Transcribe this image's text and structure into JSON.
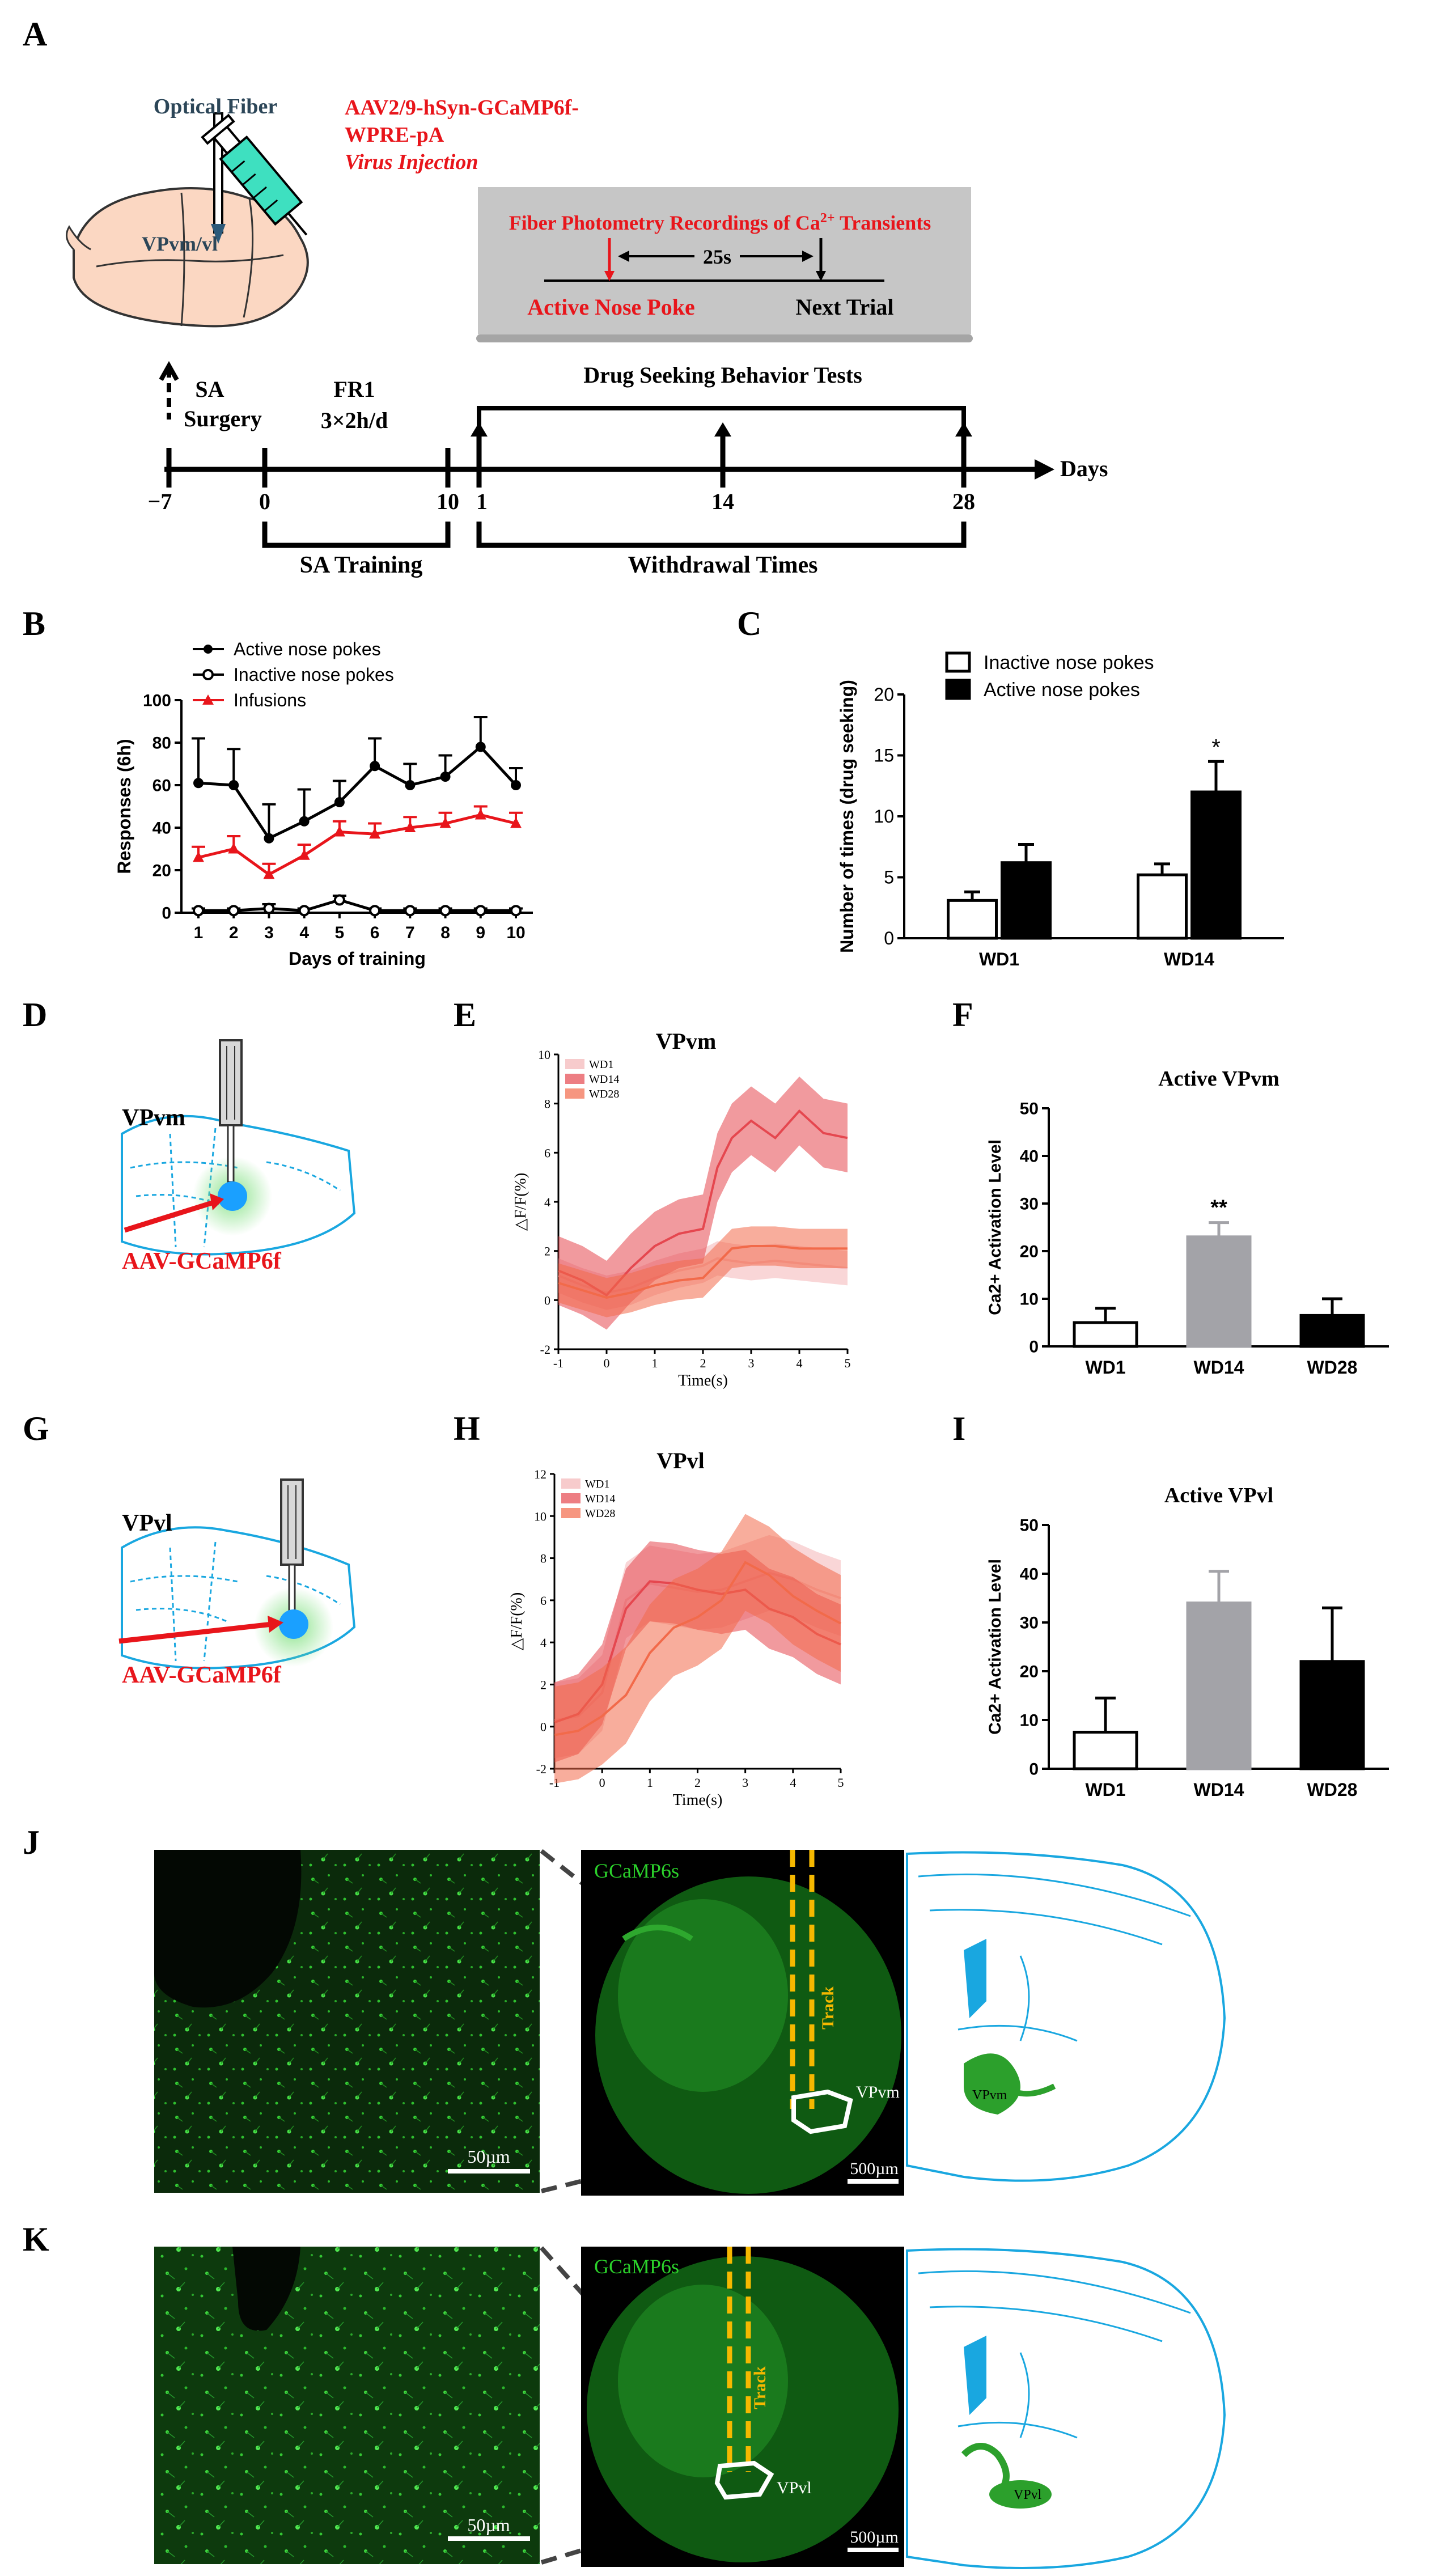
{
  "panel_letters": {
    "A": "A",
    "B": "B",
    "C": "C",
    "D": "D",
    "E": "E",
    "F": "F",
    "G": "G",
    "H": "H",
    "I": "I",
    "J": "J",
    "K": "K"
  },
  "colors": {
    "red": "#e8151b",
    "blue": "#19a7e0",
    "green": "#2bd02b",
    "black": "#000000",
    "grey": "#a3a3a8",
    "trace_wd1": "#f4b5b7",
    "trace_wd14": "#e5474f",
    "trace_wd28": "#f26a4a"
  },
  "panelA": {
    "optical_fiber": "Optical Fiber",
    "virus_line1": "AAV2/9-hSyn-GCaMP6f-",
    "virus_line2": "WPRE-pA",
    "virus_line3": "Virus Injection",
    "brain_region": "VPvm/vl",
    "box_title": "Fiber Photometry Recordings of Ca",
    "box_title_sup": "2+",
    "box_title_end": " Transients",
    "interval": "25s",
    "active_nose_poke": "Active Nose Poke",
    "next_trial": "Next Trial",
    "drug_seeking": "Drug Seeking Behavior Tests",
    "sa_surgery_1": "SA",
    "sa_surgery_2": "Surgery",
    "fr1_1": "FR1",
    "fr1_2": "3×2h/d",
    "days": "Days",
    "ticks": [
      "−7",
      "0",
      "10",
      "1",
      "14",
      "28"
    ],
    "sa_training": "SA Training",
    "withdrawal_times": "Withdrawal Times"
  },
  "chart_data": [
    {
      "id": "B",
      "type": "line",
      "x": [
        1,
        2,
        3,
        4,
        5,
        6,
        7,
        8,
        9,
        10
      ],
      "xlabel": "Days of training",
      "ylabel": "Responses (6h)",
      "ylim": [
        0,
        100
      ],
      "yticks": [
        0,
        20,
        40,
        60,
        80,
        100
      ],
      "series": [
        {
          "name": "Active nose pokes",
          "values": [
            61,
            60,
            35,
            43,
            52,
            69,
            60,
            64,
            78,
            60
          ],
          "err": [
            21,
            17,
            16,
            15,
            10,
            13,
            10,
            10,
            14,
            8
          ]
        },
        {
          "name": "Inactive nose pokes",
          "values": [
            1,
            1,
            2,
            1,
            6,
            1,
            1,
            1,
            1,
            1
          ],
          "err": [
            1,
            1,
            2,
            1,
            2,
            1,
            1,
            1,
            1,
            1
          ]
        },
        {
          "name": "Infusions",
          "values": [
            26,
            30,
            18,
            27,
            38,
            37,
            40,
            42,
            46,
            42
          ],
          "err": [
            5,
            6,
            5,
            5,
            5,
            5,
            5,
            5,
            4,
            5
          ]
        }
      ]
    },
    {
      "id": "C",
      "type": "bar",
      "categories": [
        "WD1",
        "WD14"
      ],
      "ylabel": "Number of times (drug seeking)",
      "ylim": [
        0,
        20
      ],
      "yticks": [
        0,
        5,
        10,
        15,
        20
      ],
      "series": [
        {
          "name": "Inactive nose pokes",
          "values": [
            3.1,
            5.2
          ],
          "err": [
            0.7,
            0.9
          ]
        },
        {
          "name": "Active nose pokes",
          "values": [
            6.2,
            12.0
          ],
          "err": [
            1.5,
            2.5
          ]
        }
      ],
      "annotations": [
        "*"
      ]
    },
    {
      "id": "E",
      "type": "area",
      "title": "VPvm",
      "xlabel": "Time(s)",
      "ylabel": "△F/F(%)",
      "xlim": [
        -1,
        5
      ],
      "ylim": [
        -2,
        10
      ],
      "xticks": [
        -1,
        0,
        1,
        2,
        3,
        4,
        5
      ],
      "yticks": [
        -2,
        0,
        2,
        4,
        6,
        8,
        10
      ],
      "series": [
        {
          "name": "WD1",
          "x": [
            -1,
            -0.5,
            0,
            0.5,
            1,
            1.5,
            2,
            2.3,
            2.6,
            3,
            3.5,
            4,
            4.5,
            5
          ],
          "values": [
            1,
            0.6,
            0.3,
            0.5,
            0.9,
            1.2,
            1.4,
            1.7,
            1.6,
            1.5,
            1.6,
            1.5,
            1.4,
            1.3
          ],
          "band": 0.7
        },
        {
          "name": "WD14",
          "x": [
            -1,
            -0.5,
            0,
            0.5,
            1,
            1.5,
            2,
            2.3,
            2.6,
            3,
            3.5,
            4,
            4.5,
            5
          ],
          "values": [
            1.2,
            0.8,
            0.2,
            1.3,
            2.2,
            2.7,
            2.9,
            5.4,
            6.6,
            7.3,
            6.6,
            7.7,
            6.8,
            6.6
          ],
          "band": 1.4
        },
        {
          "name": "WD28",
          "x": [
            -1,
            -0.5,
            0,
            0.5,
            1,
            1.5,
            2,
            2.3,
            2.6,
            3,
            3.5,
            4,
            4.5,
            5
          ],
          "values": [
            0.7,
            0.4,
            0.1,
            0.3,
            0.6,
            0.8,
            0.9,
            1.5,
            2.1,
            2.2,
            2.2,
            2.1,
            2.1,
            2.1
          ],
          "band": 0.8
        }
      ]
    },
    {
      "id": "F",
      "type": "bar",
      "title": "Active VPvm",
      "categories": [
        "WD1",
        "WD14",
        "WD28"
      ],
      "ylabel": "Ca2+ Activation Level",
      "ylim": [
        0,
        50
      ],
      "yticks": [
        0,
        10,
        20,
        30,
        40,
        50
      ],
      "values": [
        5,
        23,
        6.5
      ],
      "err": [
        3,
        3,
        3.5
      ],
      "annotations": [
        "",
        "**",
        ""
      ]
    },
    {
      "id": "H",
      "type": "area",
      "title": "VPvl",
      "xlabel": "Time(s)",
      "ylabel": "△F/F(%)",
      "xlim": [
        -1,
        5
      ],
      "ylim": [
        -2,
        12
      ],
      "xticks": [
        -1,
        0,
        1,
        2,
        3,
        4,
        5
      ],
      "yticks": [
        -2,
        0,
        2,
        4,
        6,
        8,
        10,
        12
      ],
      "series": [
        {
          "name": "WD1",
          "x": [
            -1,
            -0.5,
            0,
            0.5,
            1,
            1.5,
            2,
            2.5,
            3,
            3.5,
            4,
            4.5,
            5
          ],
          "values": [
            0.3,
            0.5,
            1.6,
            6,
            6.8,
            6.6,
            6.4,
            6.5,
            6.9,
            7.3,
            7,
            6.5,
            6.1
          ],
          "band": 1.8
        },
        {
          "name": "WD14",
          "x": [
            -1,
            -0.5,
            0,
            0.5,
            1,
            1.5,
            2,
            2.5,
            3,
            3.5,
            4,
            4.5,
            5
          ],
          "values": [
            0.2,
            0.6,
            2,
            5.6,
            6.9,
            6.8,
            6.5,
            6.3,
            6.5,
            5.6,
            5.2,
            4.4,
            3.9
          ],
          "band": 1.9
        },
        {
          "name": "WD28",
          "x": [
            -1,
            -0.5,
            0,
            0.5,
            1,
            1.5,
            2,
            2.5,
            3,
            3.5,
            4,
            4.5,
            5
          ],
          "values": [
            -0.4,
            -0.2,
            0.5,
            1.5,
            3.5,
            4.7,
            5.2,
            6,
            7.8,
            7.2,
            6.2,
            5.5,
            4.9
          ],
          "band": 2.3
        }
      ]
    },
    {
      "id": "I",
      "type": "bar",
      "title": "Active VPvl",
      "categories": [
        "WD1",
        "WD14",
        "WD28"
      ],
      "ylabel": "Ca2+ Activation Level",
      "ylim": [
        0,
        50
      ],
      "yticks": [
        0,
        10,
        20,
        30,
        40,
        50
      ],
      "values": [
        7.5,
        34,
        22
      ],
      "err": [
        7,
        6.5,
        11
      ]
    }
  ],
  "panelD": {
    "region": "VPvm",
    "virus": "AAV-GCaMP6f"
  },
  "panelG": {
    "region": "VPvl",
    "virus": "AAV-GCaMP6f"
  },
  "panelJ": {
    "label": "GCaMP6s",
    "track": "Track",
    "region": "VPvm",
    "region_atlas": "VPvm",
    "scale_small": "50µm",
    "scale_large": "500µm"
  },
  "panelK": {
    "label": "GCaMP6s",
    "track": "Track",
    "region": "VPvl",
    "region_atlas": "VPvl",
    "scale_small": "50µm",
    "scale_large": "500µm"
  }
}
